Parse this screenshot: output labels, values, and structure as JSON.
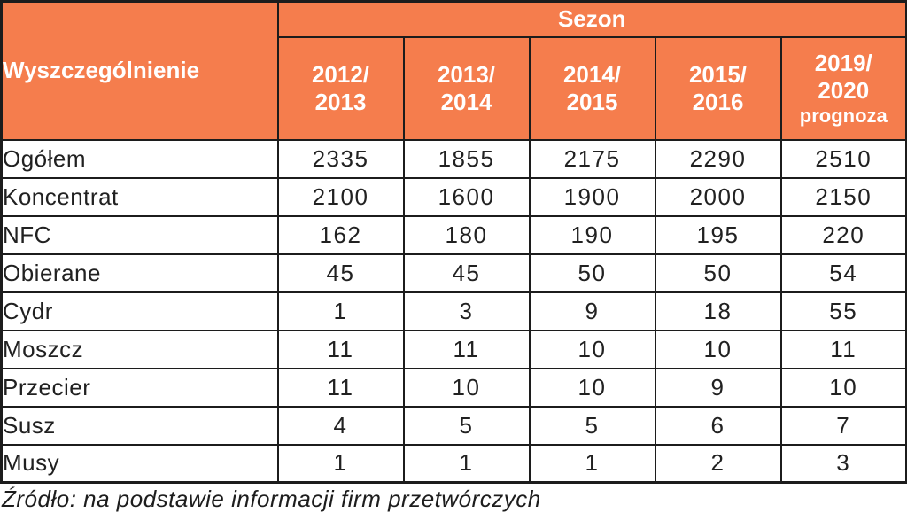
{
  "table": {
    "corner_header": "Wyszczególnienie",
    "group_header": "Sezon",
    "columns": [
      {
        "label": "2012/\n2013",
        "suffix": ""
      },
      {
        "label": "2013/\n2014",
        "suffix": ""
      },
      {
        "label": "2014/\n2015",
        "suffix": ""
      },
      {
        "label": "2015/\n2016",
        "suffix": ""
      },
      {
        "label": "2019/\n2020",
        "suffix": "prognoza"
      }
    ],
    "rows": [
      {
        "label": "Ogółem",
        "values": [
          "2335",
          "1855",
          "2175",
          "2290",
          "2510"
        ]
      },
      {
        "label": "Koncentrat",
        "values": [
          "2100",
          "1600",
          "1900",
          "2000",
          "2150"
        ]
      },
      {
        "label": "NFC",
        "values": [
          "162",
          "180",
          "190",
          "195",
          "220"
        ]
      },
      {
        "label": "Obierane",
        "values": [
          "45",
          "45",
          "50",
          "50",
          "54"
        ]
      },
      {
        "label": "Cydr",
        "values": [
          "1",
          "3",
          "9",
          "18",
          "55"
        ]
      },
      {
        "label": "Moszcz",
        "values": [
          "11",
          "11",
          "10",
          "10",
          "11"
        ]
      },
      {
        "label": "Przecier",
        "values": [
          "11",
          "10",
          "10",
          "9",
          "10"
        ]
      },
      {
        "label": "Susz",
        "values": [
          "4",
          "5",
          "5",
          "6",
          "7"
        ]
      },
      {
        "label": "Musy",
        "values": [
          "1",
          "1",
          "1",
          "2",
          "3"
        ]
      }
    ],
    "source_note": "Źródło: na podstawie informacji firm przetwórczych"
  },
  "colors": {
    "header_bg": "#f57d4d",
    "header_text": "#ffffff",
    "border": "#1c1c1c",
    "body_text": "#212121"
  },
  "chart_data": {
    "type": "table",
    "title": "Sezon",
    "categories": [
      "2012/2013",
      "2013/2014",
      "2014/2015",
      "2015/2016",
      "2019/2020 prognoza"
    ],
    "series": [
      {
        "name": "Ogółem",
        "values": [
          2335,
          1855,
          2175,
          2290,
          2510
        ]
      },
      {
        "name": "Koncentrat",
        "values": [
          2100,
          1600,
          1900,
          2000,
          2150
        ]
      },
      {
        "name": "NFC",
        "values": [
          162,
          180,
          190,
          195,
          220
        ]
      },
      {
        "name": "Obierane",
        "values": [
          45,
          45,
          50,
          50,
          54
        ]
      },
      {
        "name": "Cydr",
        "values": [
          1,
          3,
          9,
          18,
          55
        ]
      },
      {
        "name": "Moszcz",
        "values": [
          11,
          11,
          10,
          10,
          11
        ]
      },
      {
        "name": "Przecier",
        "values": [
          11,
          10,
          10,
          9,
          10
        ]
      },
      {
        "name": "Susz",
        "values": [
          4,
          5,
          5,
          6,
          7
        ]
      },
      {
        "name": "Musy",
        "values": [
          1,
          1,
          1,
          2,
          3
        ]
      }
    ]
  }
}
